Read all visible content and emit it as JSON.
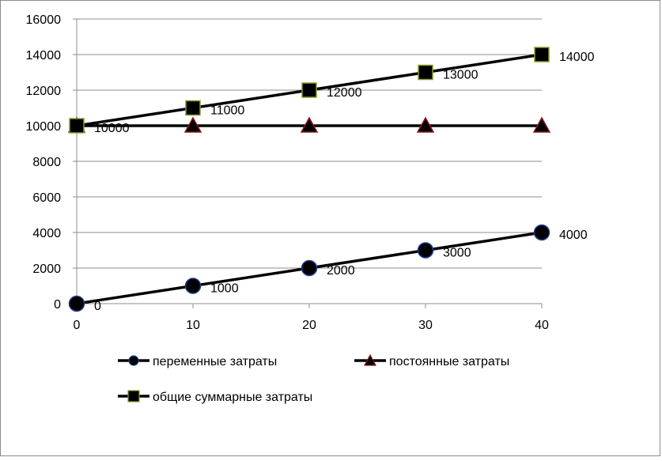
{
  "chart_data": {
    "type": "line",
    "x": [
      0,
      10,
      20,
      30,
      40
    ],
    "x_tick_labels": [
      "0",
      "10",
      "20",
      "30",
      "40"
    ],
    "xlim": [
      0,
      40
    ],
    "ylim": [
      0,
      16000
    ],
    "y_tick_labels": [
      "0",
      "2000",
      "4000",
      "6000",
      "8000",
      "10000",
      "12000",
      "14000",
      "16000"
    ],
    "y_ticks": [
      0,
      2000,
      4000,
      6000,
      8000,
      10000,
      12000,
      14000,
      16000
    ],
    "grid": "horizontal",
    "legend_position": "bottom",
    "series": [
      {
        "name": "переменные затраты",
        "marker": "circle",
        "values": [
          0,
          1000,
          2000,
          3000,
          4000
        ],
        "data_labels": [
          "0",
          "1000",
          "2000",
          "3000",
          "4000"
        ],
        "line_color": "#000000",
        "marker_color": "#000000",
        "marker_edge_color": "#1f3f8f"
      },
      {
        "name": "постоянные затраты",
        "marker": "triangle",
        "values": [
          10000,
          10000,
          10000,
          10000,
          10000
        ],
        "data_labels": [],
        "line_color": "#000000",
        "marker_color": "#000000",
        "marker_edge_color": "#8b1a1a"
      },
      {
        "name": "общие суммарные затраты",
        "marker": "square",
        "values": [
          10000,
          11000,
          12000,
          13000,
          14000
        ],
        "data_labels": [
          "10000",
          "11000",
          "12000",
          "13000",
          "14000"
        ],
        "line_color": "#000000",
        "marker_color": "#000000",
        "marker_edge_color": "#8a9a2a"
      }
    ],
    "colors": {
      "gridline": "#8c8c8c",
      "axis": "#8c8c8c",
      "frame": "#8c8c8c"
    }
  }
}
